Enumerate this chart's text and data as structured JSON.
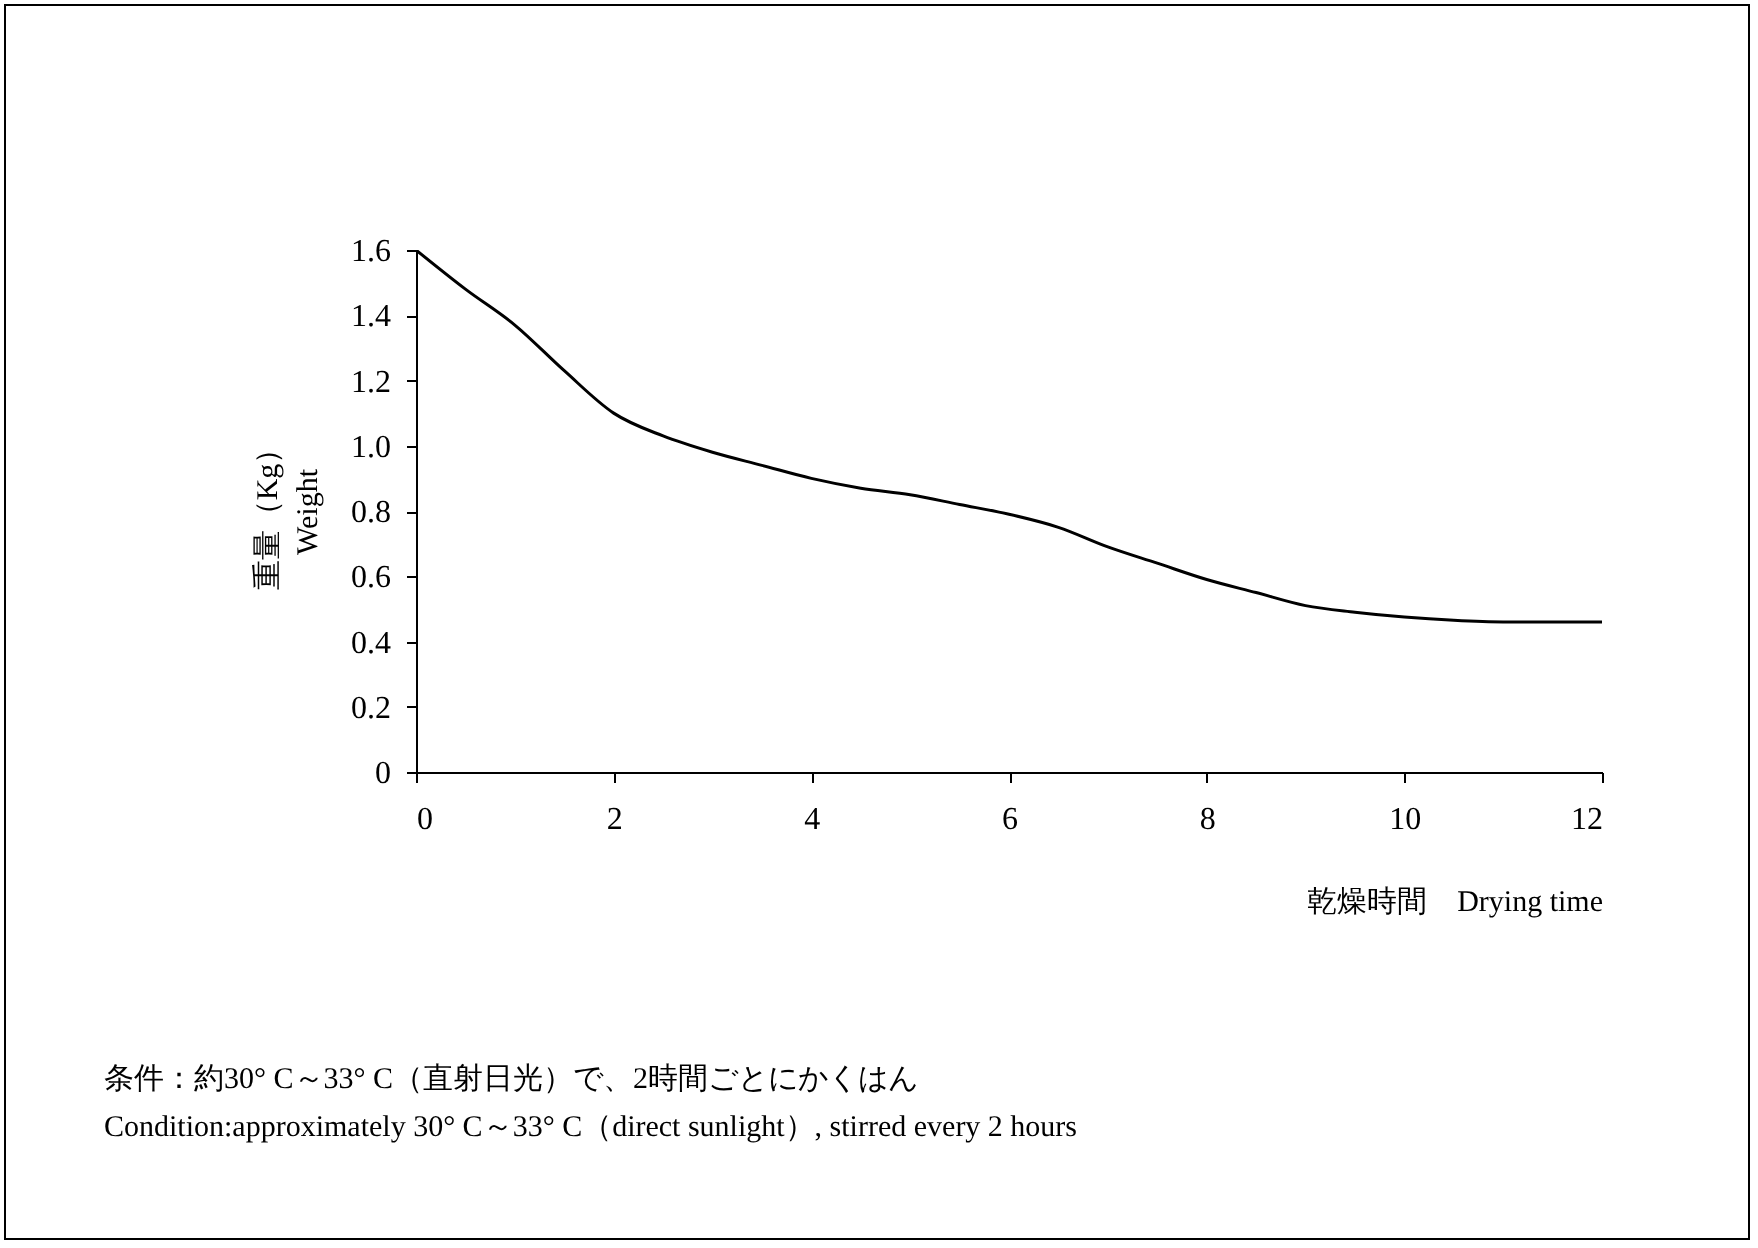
{
  "chart_data": {
    "type": "line",
    "xlabel": "乾燥時間　Drying time",
    "ylabel": "重量（Kg）\nWeight",
    "x": [
      0,
      0.5,
      1,
      1.5,
      2,
      2.5,
      3,
      3.5,
      4,
      4.5,
      5,
      5.5,
      6,
      6.5,
      7,
      7.5,
      8,
      8.5,
      9,
      9.5,
      10,
      10.5,
      11,
      11.5,
      12
    ],
    "series": [
      {
        "color": "#000000",
        "values": [
          1.6,
          1.48,
          1.37,
          1.23,
          1.1,
          1.03,
          0.98,
          0.94,
          0.9,
          0.87,
          0.85,
          0.82,
          0.79,
          0.75,
          0.69,
          0.64,
          0.59,
          0.55,
          0.51,
          0.49,
          0.475,
          0.465,
          0.46,
          0.46,
          0.46
        ]
      }
    ],
    "xlim": [
      0,
      12
    ],
    "xticks": [
      0,
      2,
      4,
      6,
      8,
      10,
      12
    ],
    "ylim": [
      0,
      1.6
    ],
    "yticks": [
      0,
      {
        "value": 0.2,
        "label": "0.2"
      },
      {
        "value": 0.4,
        "label": "0.4"
      },
      {
        "value": 0.6,
        "label": "0.6"
      },
      {
        "value": 0.8,
        "label": "0.8"
      },
      {
        "value": 1.0,
        "label": "1.0"
      },
      {
        "value": 1.2,
        "label": "1.2"
      },
      {
        "value": 1.4,
        "label": "1.4"
      },
      {
        "value": 1.6,
        "label": "1.6"
      }
    ],
    "grid": false,
    "marker": "none",
    "line_style": "solid",
    "annotations": [
      "条件：約30° C～33° C（直射日光）で、2時間ごとにかくはん",
      "Condition:approximately 30° C～33° C（direct sunlight）, stirred every  2  hours"
    ]
  }
}
